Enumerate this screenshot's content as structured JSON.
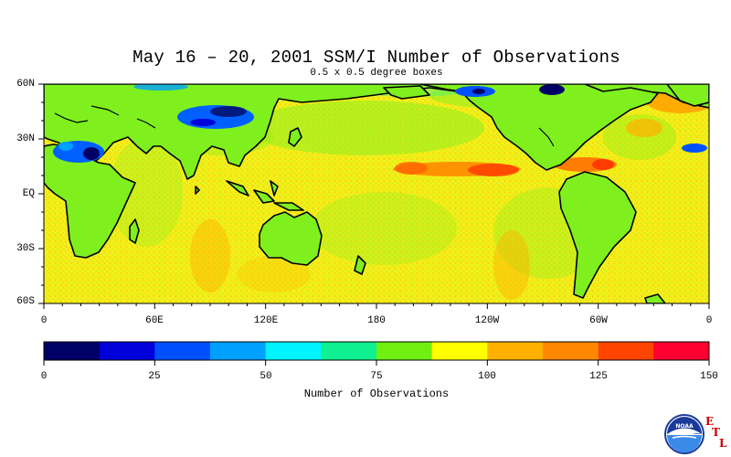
{
  "title": "May 16 – 20, 2001 SSM/I Number of Observations",
  "subtitle": "0.5 x 0.5 degree boxes",
  "map": {
    "lat_labels": [
      "60N",
      "30N",
      "EQ",
      "30S",
      "60S"
    ],
    "lon_labels": [
      "0",
      "60E",
      "120E",
      "180",
      "120W",
      "60W",
      "0"
    ],
    "ocean_base_color": "#f4ee1a",
    "land_color": "#7ff01e",
    "coastline_color": "#000000"
  },
  "colorbar": {
    "title": "Number of Observations",
    "tick_labels": [
      "0",
      "25",
      "50",
      "75",
      "100",
      "125",
      "150"
    ],
    "colors": [
      "#000066",
      "#0000d8",
      "#0050ff",
      "#00a0ff",
      "#00f4ff",
      "#10f090",
      "#70f010",
      "#ffff00",
      "#ffb000",
      "#ff8800",
      "#ff4400",
      "#ff0030"
    ]
  },
  "logo": {
    "text": "NOAA",
    "letters": [
      "E",
      "T",
      "L"
    ],
    "icon": "noaa-emblem-icon"
  }
}
